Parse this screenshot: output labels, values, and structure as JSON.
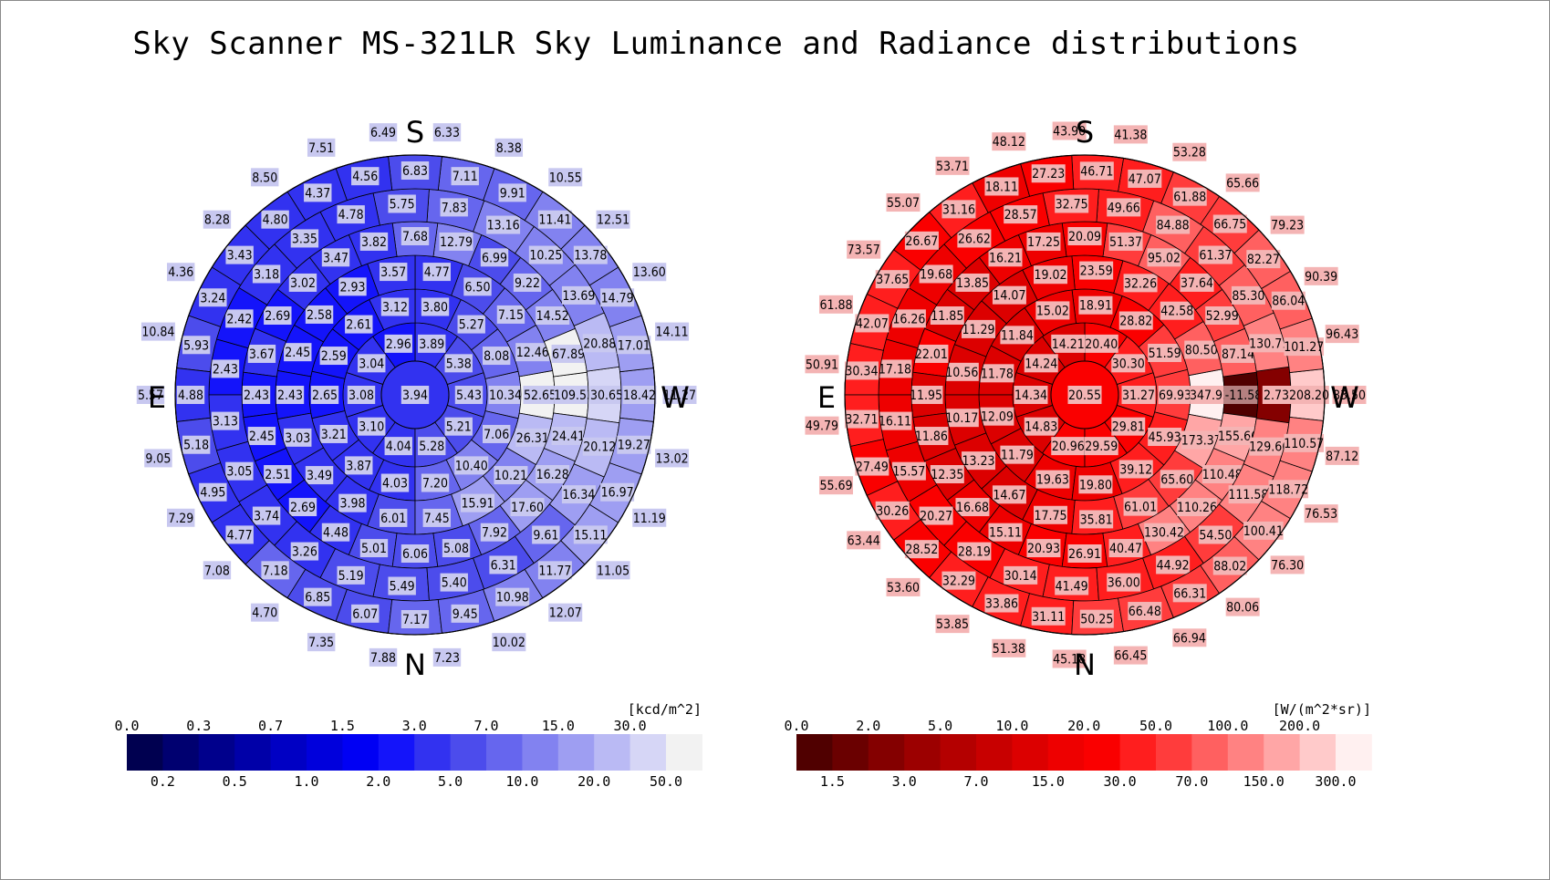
{
  "title": "Sky Scanner MS-321LR Sky Luminance and Radiance distributions",
  "directions": {
    "top": "S",
    "bottom": "N",
    "left": "E",
    "right": "W"
  },
  "chart_data": [
    {
      "type": "polar-heatmap",
      "quantity": "Sky Luminance",
      "unit": "[kcd/m^2]",
      "colormap": "blue",
      "colorbar": {
        "upper_ticks": [
          "0.0",
          "0.3",
          "0.7",
          "1.5",
          "3.0",
          "7.0",
          "15.0",
          "30.0"
        ],
        "lower_ticks": [
          "0.2",
          "0.5",
          "1.0",
          "2.0",
          "5.0",
          "10.0",
          "20.0",
          "50.0"
        ],
        "thresholds": [
          0.0,
          0.2,
          0.3,
          0.5,
          0.7,
          1.0,
          1.5,
          2.0,
          3.0,
          5.0,
          7.0,
          10.0,
          15.0,
          20.0,
          30.0,
          50.0
        ],
        "colors": [
          "#000050",
          "#000070",
          "#00008c",
          "#0000a8",
          "#0000c4",
          "#0000dc",
          "#0000f4",
          "#1414fa",
          "#3232f0",
          "#4c4cec",
          "#6666ee",
          "#8282f0",
          "#9e9ef2",
          "#babaf4",
          "#d6d6f6",
          "#f2f2f2"
        ]
      },
      "zenith": "3.94",
      "rings": [
        [
          "5.43",
          "5.38",
          "3.89",
          "2.96",
          "3.04",
          "3.08",
          "3.10",
          "4.04",
          "5.28",
          "5.21"
        ],
        [
          "10.34",
          "8.08",
          "5.27",
          "3.80",
          "3.12",
          "2.61",
          "2.59",
          "2.65",
          "3.21",
          "3.87",
          "4.03",
          "7.20",
          "10.40",
          "7.06"
        ],
        [
          "52.65",
          "12.46",
          "7.15",
          "6.50",
          "4.77",
          "3.57",
          "2.93",
          "2.58",
          "2.45",
          "2.43",
          "3.03",
          "3.49",
          "3.98",
          "6.01",
          "7.45",
          "15.91",
          "10.21",
          "26.31"
        ],
        [
          "109.53",
          "67.89",
          "14.52",
          "9.22",
          "6.99",
          "12.79",
          "7.68",
          "3.82",
          "3.47",
          "3.02",
          "2.69",
          "3.67",
          "2.43",
          "2.45",
          "2.51",
          "2.69",
          "4.48",
          "5.01",
          "6.06",
          "5.08",
          "7.92",
          "17.60",
          "16.28",
          "24.41"
        ],
        [
          "30.65",
          "20.88",
          "13.69",
          "10.25",
          "13.16",
          "7.83",
          "5.75",
          "4.78",
          "3.35",
          "3.18",
          "2.42",
          "2.43",
          "3.13",
          "3.05",
          "3.74",
          "3.26",
          "5.19",
          "5.49",
          "5.40",
          "6.31",
          "9.61",
          "16.34",
          "20.12"
        ],
        [
          "18.42",
          "17.01",
          "14.79",
          "13.78",
          "11.41",
          "9.91",
          "7.11",
          "6.83",
          "4.56",
          "4.37",
          "4.80",
          "3.43",
          "3.24",
          "5.93",
          "4.88",
          "5.18",
          "4.95",
          "4.77",
          "7.18",
          "6.85",
          "6.07",
          "7.17",
          "9.45",
          "10.98",
          "11.77",
          "15.11",
          "16.97",
          "19.27"
        ],
        [
          "11.27",
          "14.11",
          "13.60",
          "12.51",
          "10.55",
          "8.38",
          "6.33",
          "6.49",
          "7.51",
          "8.50",
          "8.28",
          "4.36",
          "10.84",
          "5.57",
          "9.05",
          "7.29",
          "7.08",
          "4.70",
          "7.35",
          "7.88",
          "7.23",
          "10.02",
          "12.07",
          "11.05",
          "11.19",
          "13.02"
        ]
      ]
    },
    {
      "type": "polar-heatmap",
      "quantity": "Sky Radiance",
      "unit": "[W/(m^2*sr)]",
      "colormap": "red",
      "colorbar": {
        "upper_ticks": [
          "0.0",
          "2.0",
          "5.0",
          "10.0",
          "20.0",
          "50.0",
          "100.0",
          "200.0"
        ],
        "lower_ticks": [
          "1.5",
          "3.0",
          "7.0",
          "15.0",
          "30.0",
          "70.0",
          "150.0",
          "300.0"
        ],
        "thresholds": [
          0,
          1.5,
          2.0,
          3.0,
          5.0,
          7.0,
          10.0,
          15.0,
          20.0,
          30.0,
          50.0,
          70.0,
          100.0,
          150.0,
          200.0,
          300.0
        ],
        "colors": [
          "#500000",
          "#6a0000",
          "#840000",
          "#9c0000",
          "#b40000",
          "#c80000",
          "#dc0000",
          "#ee0000",
          "#fa0000",
          "#ff1e1e",
          "#ff3c3c",
          "#ff6060",
          "#ff8282",
          "#ffa6a6",
          "#ffcaca",
          "#fff0f0"
        ]
      },
      "zenith": "20.55",
      "rings": [
        [
          "31.27",
          "30.30",
          "20.40",
          "14.21",
          "14.24",
          "14.34",
          "14.83",
          "20.96",
          "29.59",
          "29.81"
        ],
        [
          "69.93",
          "51.59",
          "28.82",
          "18.91",
          "15.02",
          "11.84",
          "11.78",
          "12.09",
          "11.79",
          "19.63",
          "19.80",
          "39.12",
          "45.93"
        ],
        [
          "347.93",
          "80.50",
          "42.58",
          "32.26",
          "23.59",
          "19.02",
          "14.07",
          "11.29",
          "10.56",
          "10.17",
          "13.23",
          "14.67",
          "17.75",
          "35.81",
          "61.01",
          "65.60",
          "173.37"
        ],
        [
          "-11.58",
          "87.14",
          "52.99",
          "37.64",
          "95.02",
          "51.37",
          "20.09",
          "17.25",
          "16.21",
          "13.85",
          "11.85",
          "22.01",
          "11.95",
          "11.86",
          "12.35",
          "16.68",
          "15.11",
          "20.93",
          "26.91",
          "40.47",
          "130.42",
          "110.26",
          "110.48",
          "155.66"
        ],
        [
          "2.73",
          "130.71",
          "85.30",
          "61.37",
          "84.88",
          "49.66",
          "32.75",
          "28.57",
          "26.62",
          "19.68",
          "16.26",
          "17.18",
          "16.11",
          "15.57",
          "20.27",
          "28.19",
          "30.14",
          "41.49",
          "36.00",
          "44.92",
          "54.50",
          "111.58",
          "129.66"
        ],
        [
          "208.20",
          "101.27",
          "86.04",
          "82.27",
          "66.75",
          "61.88",
          "47.07",
          "46.71",
          "27.23",
          "18.11",
          "31.16",
          "26.67",
          "37.65",
          "42.07",
          "30.34",
          "32.71",
          "27.49",
          "30.26",
          "28.52",
          "32.29",
          "33.86",
          "31.11",
          "50.25",
          "66.48",
          "66.31",
          "88.02",
          "100.41",
          "118.72",
          "110.57"
        ],
        [
          "83.50",
          "96.43",
          "90.39",
          "79.23",
          "65.66",
          "53.28",
          "41.38",
          "43.90",
          "48.12",
          "53.71",
          "55.07",
          "73.57",
          "61.88",
          "50.91",
          "49.79",
          "55.69",
          "63.44",
          "53.60",
          "53.85",
          "51.38",
          "45.18",
          "66.45",
          "66.94",
          "80.06",
          "76.30",
          "76.53",
          "87.12"
        ]
      ]
    }
  ]
}
